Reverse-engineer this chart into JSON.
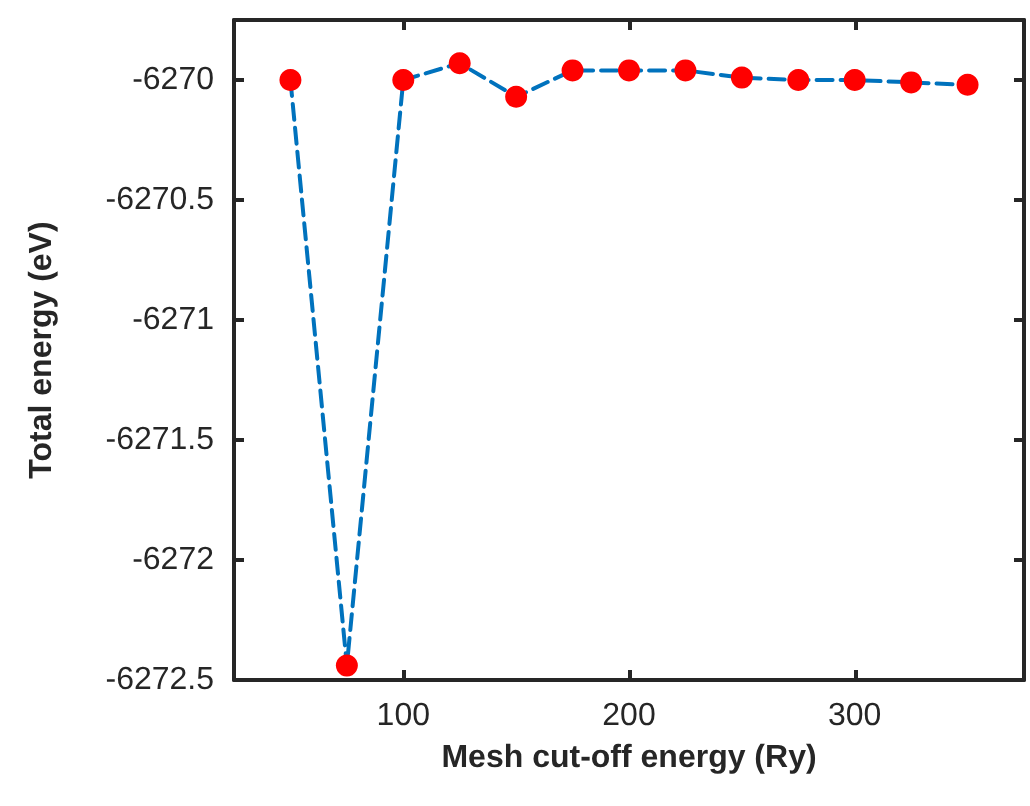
{
  "chart_data": {
    "type": "line",
    "xlabel": "Mesh cut-off energy (Ry)",
    "ylabel": "Total energy (eV)",
    "x": [
      50,
      75,
      100,
      125,
      150,
      175,
      200,
      225,
      250,
      275,
      300,
      325,
      350
    ],
    "series": [
      {
        "color": "#0072bd",
        "colors": [
          "#ff0000",
          "#ff0000",
          "#ff0000",
          "#ff0000",
          "#ff0000",
          "#ff0000",
          "#ff0000",
          "#ff0000",
          "#ff0000",
          "#ff0000",
          "#ff0000",
          "#ff0000",
          "#ff0000"
        ],
        "values": [
          -6270.0,
          -6272.44,
          -6270.0,
          -6269.93,
          -6270.07,
          -6269.96,
          -6269.96,
          -6269.96,
          -6269.99,
          -6270.0,
          -6270.0,
          -6270.01,
          -6270.02
        ]
      }
    ],
    "xlim": [
      25,
      375
    ],
    "xticks": [
      100,
      200,
      300
    ],
    "ylim": [
      -6272.5,
      -6269.75
    ],
    "yticks": [
      -6272.5,
      -6272,
      -6271.5,
      -6271,
      -6270.5,
      -6270
    ],
    "marker": "circle",
    "line_style": "dashed",
    "grid": false
  }
}
